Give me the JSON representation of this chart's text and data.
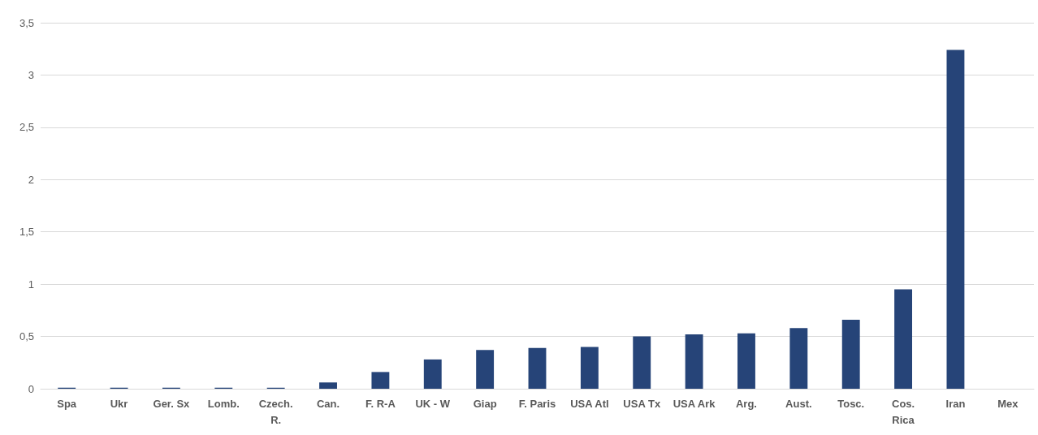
{
  "chart_data": {
    "type": "bar",
    "categories": [
      "Spa",
      "Ukr",
      "Ger. Sx",
      "Lomb.",
      "Czech.\nR.",
      "Can.",
      "F. R-A",
      "UK - W",
      "Giap",
      "F. Paris",
      "USA Atl",
      "USA Tx",
      "USA Ark",
      "Arg.",
      "Aust.",
      "Tosc.",
      "Cos.\nRica",
      "Iran",
      "Mex"
    ],
    "values": [
      0.01,
      0.01,
      0.01,
      0.01,
      0.01,
      0.06,
      0.16,
      0.28,
      0.37,
      0.39,
      0.4,
      0.5,
      0.52,
      0.53,
      0.58,
      0.66,
      0.95,
      3.24,
      null
    ],
    "color": "#264478",
    "ylim": [
      0,
      3.5
    ],
    "yticks": [
      0,
      {
        "value": 0.5,
        "label": "0,5"
      },
      1,
      {
        "value": 1.5,
        "label": "1,5"
      },
      2,
      {
        "value": 2.5,
        "label": "2,5"
      },
      3,
      {
        "value": 3.5,
        "label": "3,5"
      }
    ],
    "grid": "y"
  }
}
